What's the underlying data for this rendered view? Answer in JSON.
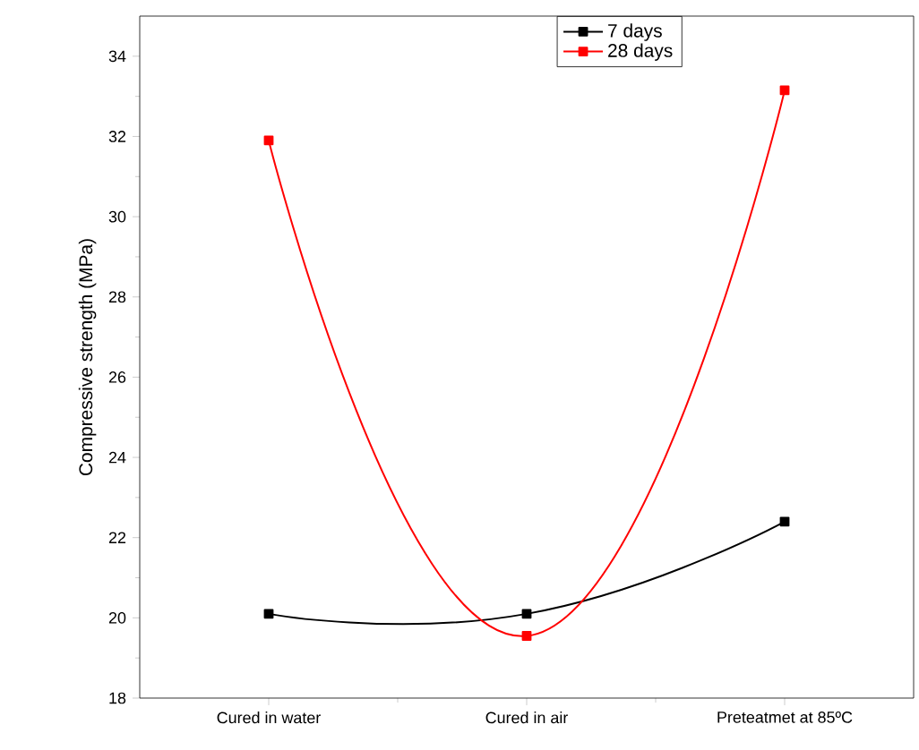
{
  "chart_data": {
    "type": "line",
    "ylabel": "Compressive strength (MPa)",
    "categories": [
      "Cured in water",
      "Cured in air",
      "Preteatmet at 85ºC"
    ],
    "series": [
      {
        "name": "7 days",
        "color": "#000000",
        "values": [
          20.1,
          20.1,
          22.4
        ]
      },
      {
        "name": "28 days",
        "color": "#ff0000",
        "values": [
          31.9,
          19.55,
          33.15
        ]
      }
    ],
    "ylim": [
      18,
      35
    ],
    "yticks": [
      18,
      20,
      22,
      24,
      26,
      28,
      30,
      32,
      34
    ],
    "legend": "top",
    "marker": "square",
    "line_style": "solid",
    "grid": false
  }
}
